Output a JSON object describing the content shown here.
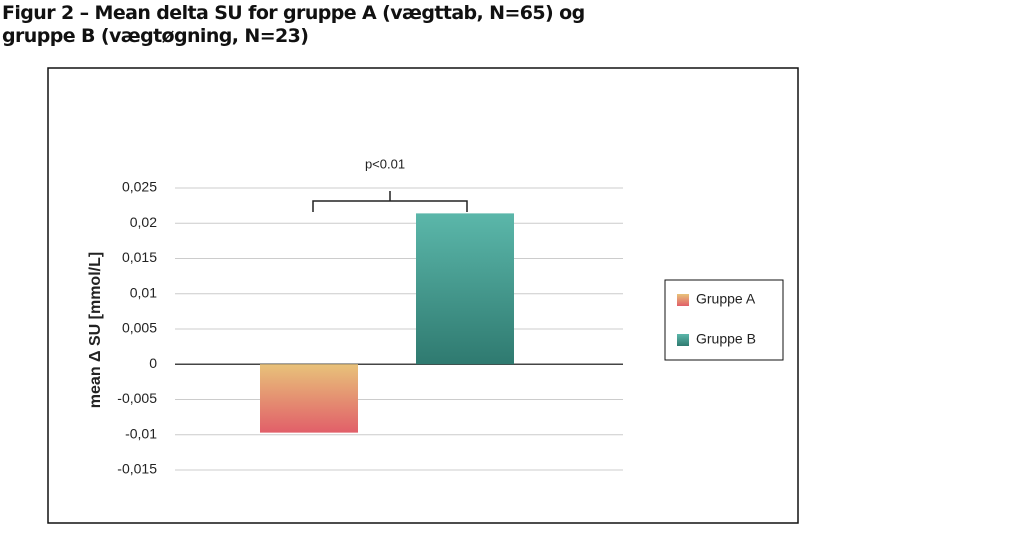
{
  "chart_data": {
    "type": "bar",
    "title": "Figur 2 – Mean delta SU for gruppe A (vægttab, N=65) og gruppe B (vægtøgning, N=23)",
    "y_label": "mean Δ SU [mmol/L]",
    "annotation": "p<0.01",
    "categories": [
      null
    ],
    "series": [
      {
        "name": "Gruppe A",
        "color": [
          "#e8c27a",
          "#e15f69"
        ],
        "values": [
          -0.0097
        ]
      },
      {
        "name": "Gruppe B",
        "color": [
          "#5bb7aa",
          "#2f7a70"
        ],
        "values": [
          0.0214
        ]
      }
    ],
    "ylim": [
      -0.015,
      0.025
    ],
    "yticks": [
      {
        "value": 0.025,
        "label": "0,025"
      },
      {
        "value": 0.02,
        "label": "0,02"
      },
      {
        "value": 0.015,
        "label": "0,015"
      },
      {
        "value": 0.01,
        "label": "0,01"
      },
      {
        "value": 0.005,
        "label": "0,005"
      },
      0,
      {
        "value": -0.005,
        "label": "-0,005"
      },
      {
        "value": -0.01,
        "label": "-0,01"
      },
      {
        "value": -0.015,
        "label": "-0,015"
      }
    ],
    "grid": true,
    "legend": "right"
  }
}
